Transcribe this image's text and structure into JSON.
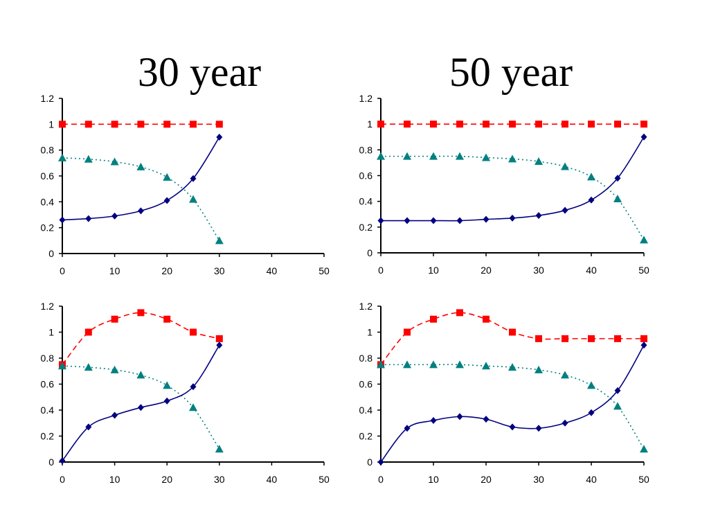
{
  "titles": {
    "left": "30 year",
    "right": "50 year"
  },
  "colors": {
    "series_diamond": "#000080",
    "series_square": "#ff0000",
    "series_triangle": "#008080"
  },
  "chart_data": [
    {
      "type": "line",
      "xlim": [
        0,
        50
      ],
      "ylim": [
        0,
        1.2
      ],
      "xticks": [
        0,
        10,
        20,
        30,
        40,
        50
      ],
      "yticks": [
        0,
        0.2,
        0.4,
        0.6,
        0.8,
        1,
        1.2
      ],
      "xtick_labels": [
        "0",
        "10",
        "20",
        "30",
        "40",
        "50"
      ],
      "ytick_labels": [
        "0",
        "0.2",
        "0.4",
        "0.6",
        "0.8",
        "1",
        "1.2"
      ],
      "grid": false,
      "series": [
        {
          "marker": "square",
          "style": "dashed",
          "color": "#ff0000",
          "x": [
            0,
            5,
            10,
            15,
            20,
            25,
            30
          ],
          "y": [
            1,
            1,
            1,
            1,
            1,
            1,
            1
          ]
        },
        {
          "marker": "triangle",
          "style": "dotted",
          "color": "#008080",
          "x": [
            0,
            5,
            10,
            15,
            20,
            25,
            30
          ],
          "y": [
            0.74,
            0.73,
            0.71,
            0.67,
            0.59,
            0.42,
            0.1
          ]
        },
        {
          "marker": "diamond",
          "style": "solid",
          "color": "#000080",
          "x": [
            0,
            5,
            10,
            15,
            20,
            25,
            30
          ],
          "y": [
            0.26,
            0.27,
            0.29,
            0.33,
            0.41,
            0.58,
            0.9
          ]
        }
      ]
    },
    {
      "type": "line",
      "xlim": [
        0,
        50
      ],
      "ylim": [
        0,
        1.2
      ],
      "xticks": [
        0,
        10,
        20,
        30,
        40,
        50
      ],
      "yticks": [
        0,
        0.2,
        0.4,
        0.6,
        0.8,
        1,
        1.2
      ],
      "xtick_labels": [
        "0",
        "10",
        "20",
        "30",
        "40",
        "50"
      ],
      "ytick_labels": [
        "0",
        "0.2",
        "0.4",
        "0.6",
        "0.8",
        "1",
        "1.2"
      ],
      "grid": false,
      "series": [
        {
          "marker": "square",
          "style": "dashed",
          "color": "#ff0000",
          "x": [
            0,
            5,
            10,
            15,
            20,
            25,
            30,
            35,
            40,
            45,
            50
          ],
          "y": [
            1,
            1,
            1,
            1,
            1,
            1,
            1,
            1,
            1,
            1,
            1
          ]
        },
        {
          "marker": "triangle",
          "style": "dotted",
          "color": "#008080",
          "x": [
            0,
            5,
            10,
            15,
            20,
            25,
            30,
            35,
            40,
            45,
            50
          ],
          "y": [
            0.75,
            0.75,
            0.75,
            0.75,
            0.74,
            0.73,
            0.71,
            0.67,
            0.59,
            0.42,
            0.1
          ]
        },
        {
          "marker": "diamond",
          "style": "solid",
          "color": "#000080",
          "x": [
            0,
            5,
            10,
            15,
            20,
            25,
            30,
            35,
            40,
            45,
            50
          ],
          "y": [
            0.25,
            0.25,
            0.25,
            0.25,
            0.26,
            0.27,
            0.29,
            0.33,
            0.41,
            0.58,
            0.9
          ]
        }
      ]
    },
    {
      "type": "line",
      "xlim": [
        0,
        50
      ],
      "ylim": [
        0,
        1.2
      ],
      "xticks": [
        0,
        10,
        20,
        30,
        40,
        50
      ],
      "yticks": [
        0,
        0.2,
        0.4,
        0.6,
        0.8,
        1,
        1.2
      ],
      "xtick_labels": [
        "0",
        "10",
        "20",
        "30",
        "40",
        "50"
      ],
      "ytick_labels": [
        "0",
        "0.2",
        "0.4",
        "0.6",
        "0.8",
        "1",
        "1.2"
      ],
      "grid": false,
      "series": [
        {
          "marker": "square",
          "style": "dashed",
          "color": "#ff0000",
          "x": [
            0,
            5,
            10,
            15,
            20,
            25,
            30
          ],
          "y": [
            0.75,
            1,
            1.1,
            1.15,
            1.1,
            1,
            0.95
          ]
        },
        {
          "marker": "triangle",
          "style": "dotted",
          "color": "#008080",
          "x": [
            0,
            5,
            10,
            15,
            20,
            25,
            30
          ],
          "y": [
            0.74,
            0.73,
            0.71,
            0.67,
            0.59,
            0.42,
            0.1
          ]
        },
        {
          "marker": "diamond",
          "style": "solid",
          "color": "#000080",
          "x": [
            0,
            5,
            10,
            15,
            20,
            25,
            30
          ],
          "y": [
            0.01,
            0.27,
            0.36,
            0.42,
            0.47,
            0.58,
            0.9
          ]
        }
      ]
    },
    {
      "type": "line",
      "xlim": [
        0,
        50
      ],
      "ylim": [
        0,
        1.2
      ],
      "xticks": [
        0,
        10,
        20,
        30,
        40,
        50
      ],
      "yticks": [
        0,
        0.2,
        0.4,
        0.6,
        0.8,
        1,
        1.2
      ],
      "xtick_labels": [
        "0",
        "10",
        "20",
        "30",
        "40",
        "50"
      ],
      "ytick_labels": [
        "0",
        "0.2",
        "0.4",
        "0.6",
        "0.8",
        "1",
        "1.2"
      ],
      "grid": false,
      "series": [
        {
          "marker": "square",
          "style": "dashed",
          "color": "#ff0000",
          "x": [
            0,
            5,
            10,
            15,
            20,
            25,
            30,
            35,
            40,
            45,
            50
          ],
          "y": [
            0.75,
            1,
            1.1,
            1.15,
            1.1,
            1,
            0.95,
            0.95,
            0.95,
            0.95,
            0.95
          ]
        },
        {
          "marker": "triangle",
          "style": "dotted",
          "color": "#008080",
          "x": [
            0,
            5,
            10,
            15,
            20,
            25,
            30,
            35,
            40,
            45,
            50
          ],
          "y": [
            0.75,
            0.75,
            0.75,
            0.75,
            0.74,
            0.73,
            0.71,
            0.67,
            0.59,
            0.43,
            0.1
          ]
        },
        {
          "marker": "diamond",
          "style": "solid",
          "color": "#000080",
          "x": [
            0,
            5,
            10,
            15,
            20,
            25,
            30,
            35,
            40,
            45,
            50
          ],
          "y": [
            0.0,
            0.26,
            0.32,
            0.35,
            0.33,
            0.27,
            0.26,
            0.3,
            0.38,
            0.55,
            0.9
          ]
        }
      ]
    }
  ]
}
